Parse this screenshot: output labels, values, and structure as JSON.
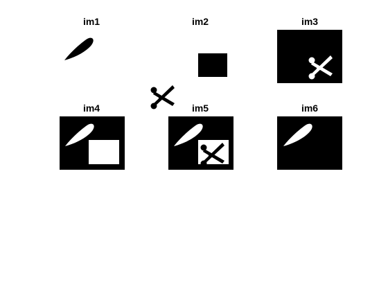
{
  "figure": {
    "background": "#ffffff",
    "foreground": "#000000",
    "inverted_foreground": "#ffffff"
  },
  "panels": [
    {
      "title": "im1",
      "content": "leaf-and-scissors-black-on-white"
    },
    {
      "title": "im2",
      "content": "black-rectangle"
    },
    {
      "title": "im3",
      "content": "white-scissors-on-black"
    },
    {
      "title": "im4",
      "content": "white-leaf-and-white-rectangle-on-black"
    },
    {
      "title": "im5",
      "content": "white-leaf-and-black-scissors-in-white-rectangle-on-black"
    },
    {
      "title": "im6",
      "content": "white-leaf-on-black"
    }
  ]
}
